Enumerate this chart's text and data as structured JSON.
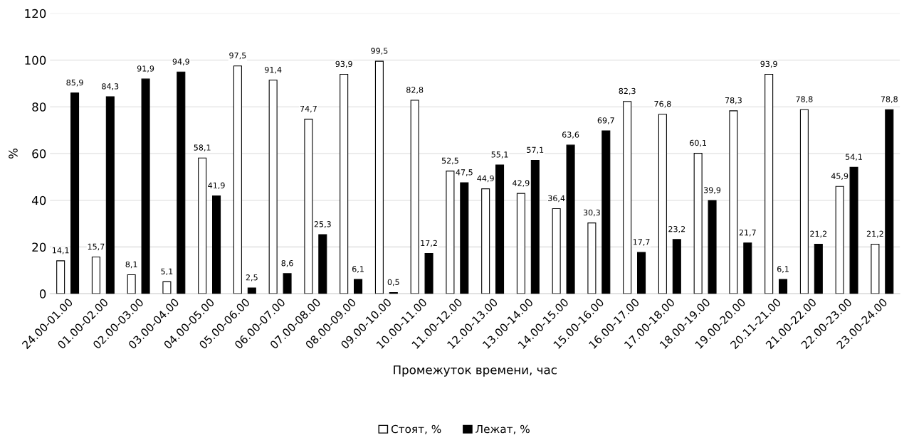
{
  "chart_data": {
    "type": "bar",
    "xlabel": "Промежуток времени, час",
    "ylabel": "%",
    "categories": [
      "24.00-01.00",
      "01.00-02.00",
      "02.00-03.00",
      "03.00-04.00",
      "04.00-05.00",
      "05.00-06.00",
      "06.00-07.00",
      "07.00-08.00",
      "08.00-09.00",
      "09.00-10.00",
      "10.00-11.00",
      "11.00-12.00",
      "12.00-13.00",
      "13.00-14.00",
      "14.00-15.00",
      "15.00-16.00",
      "16.00-17.00",
      "17.00-18.00",
      "18.00-19.00",
      "19.00-20.00",
      "20.11-21.00",
      "21.00-22.00",
      "22.00-23.00",
      "23.00-24.00"
    ],
    "series": [
      {
        "name": "Стоят, %",
        "color": "#ffffff",
        "values": [
          14.1,
          15.7,
          8.1,
          5.1,
          58.1,
          97.5,
          91.4,
          74.7,
          93.9,
          99.5,
          82.8,
          52.5,
          44.9,
          42.9,
          36.4,
          30.3,
          82.3,
          76.8,
          60.1,
          78.3,
          93.9,
          78.8,
          45.9,
          21.2
        ],
        "value_labels": [
          "14,1",
          "15,7",
          "8,1",
          "5,1",
          "58,1",
          "97,5",
          "91,4",
          "74,7",
          "93,9",
          "99,5",
          "82,8",
          "52,5",
          "44,9",
          "42,9",
          "36,4",
          "30,3",
          "82,3",
          "76,8",
          "60,1",
          "78,3",
          "93,9",
          "78,8",
          "45,9",
          "21,2"
        ]
      },
      {
        "name": "Лежат, %",
        "color": "#000000",
        "values": [
          85.9,
          84.3,
          91.9,
          94.9,
          41.9,
          2.5,
          8.6,
          25.3,
          6.1,
          0.5,
          17.2,
          47.5,
          55.1,
          57.1,
          63.6,
          69.7,
          17.7,
          23.2,
          39.9,
          21.7,
          6.1,
          21.2,
          54.1,
          78.8
        ],
        "value_labels": [
          "85,9",
          "84,3",
          "91,9",
          "94,9",
          "41,9",
          "2,5",
          "8,6",
          "25,3",
          "6,1",
          "0,5",
          "17,2",
          "47,5",
          "55,1",
          "57,1",
          "63,6",
          "69,7",
          "17,7",
          "23,2",
          "39,9",
          "21,7",
          "6,1",
          "21,2",
          "54,1",
          "78,8"
        ]
      }
    ],
    "ylim": [
      0,
      120
    ],
    "yticks": [
      0,
      20,
      40,
      60,
      80,
      100,
      120
    ],
    "grid": "y",
    "legend": "bottom"
  }
}
